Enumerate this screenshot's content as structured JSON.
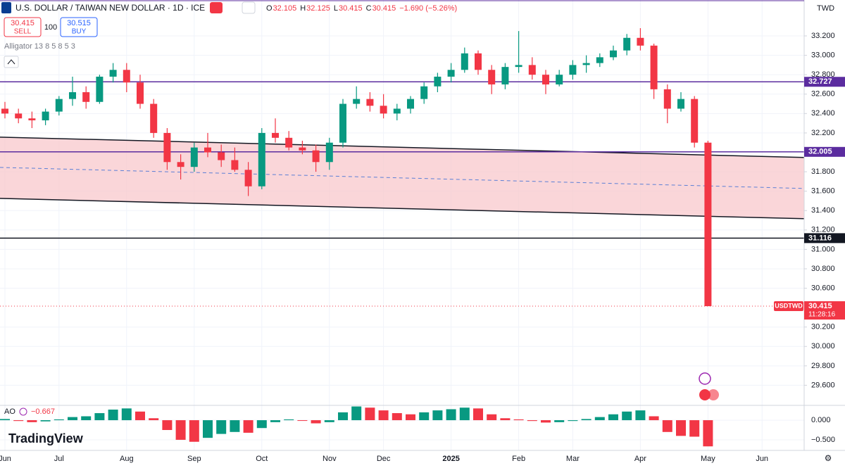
{
  "chart_data": {
    "type": "candlestick",
    "title": "U.S. DOLLAR / TAIWAN NEW DOLLAR · 1D · ICE",
    "legend_ohlc": [
      {
        "key": "O",
        "value": "32.105"
      },
      {
        "key": "H",
        "value": "32.125"
      },
      {
        "key": "L",
        "value": "30.415"
      },
      {
        "key": "C",
        "value": "30.415"
      }
    ],
    "change": "−1.690 (−5.26%)",
    "sell": {
      "price": "30.415",
      "label": "SELL"
    },
    "quantity": "100",
    "buy": {
      "price": "30.515",
      "label": "BUY"
    },
    "indicator_label": "Alligator 13 8 5 8 5 3",
    "currency": "TWD",
    "logo": "TradingView",
    "categories": [
      "Jun",
      null,
      null,
      null,
      "Jul",
      null,
      null,
      null,
      null,
      "Aug",
      null,
      null,
      null,
      null,
      "Sep",
      null,
      null,
      null,
      null,
      "Oct",
      null,
      null,
      null,
      null,
      "Nov",
      null,
      null,
      null,
      "Dec",
      null,
      null,
      null,
      null,
      "2025",
      null,
      null,
      null,
      null,
      "Feb",
      null,
      null,
      null,
      "Mar",
      null,
      null,
      null,
      null,
      "Apr",
      null,
      null,
      null,
      null,
      "May",
      null,
      null,
      null,
      "Jun",
      null,
      null
    ],
    "open": [
      32.45,
      32.4,
      32.35,
      32.33,
      32.42,
      32.55,
      32.62,
      32.52,
      32.78,
      32.85,
      32.72,
      32.5,
      32.2,
      31.9,
      31.85,
      32.05,
      32.0,
      31.92,
      31.82,
      31.65,
      32.2,
      32.15,
      32.05,
      32.02,
      31.9,
      32.1,
      32.5,
      32.55,
      32.48,
      32.4,
      32.45,
      32.55,
      32.68,
      32.78,
      32.85,
      33.02,
      32.85,
      32.7,
      32.88,
      32.9,
      32.8,
      32.7,
      32.8,
      32.9,
      32.92,
      32.98,
      33.05,
      33.18,
      33.1,
      32.65,
      32.45,
      32.55,
      32.1,
      null,
      null,
      null,
      null,
      null,
      null
    ],
    "high": [
      32.52,
      32.45,
      32.42,
      32.45,
      32.58,
      32.78,
      32.68,
      32.8,
      32.92,
      32.92,
      32.8,
      32.55,
      32.25,
      31.98,
      32.1,
      32.2,
      32.08,
      32.05,
      31.9,
      32.25,
      32.35,
      32.22,
      32.12,
      32.08,
      32.15,
      32.55,
      32.68,
      32.62,
      32.6,
      32.5,
      32.58,
      32.72,
      32.82,
      32.92,
      33.08,
      33.05,
      32.9,
      32.92,
      33.25,
      32.98,
      32.85,
      32.85,
      32.95,
      33.0,
      33.02,
      33.1,
      33.22,
      33.28,
      33.12,
      32.7,
      32.62,
      32.58,
      32.12,
      null,
      null,
      null,
      null,
      null,
      null
    ],
    "low": [
      32.35,
      32.3,
      32.25,
      32.28,
      32.38,
      32.48,
      32.45,
      32.5,
      32.72,
      32.62,
      32.45,
      32.15,
      31.82,
      31.72,
      31.8,
      31.95,
      31.85,
      31.8,
      31.55,
      31.62,
      32.1,
      32.02,
      31.98,
      31.8,
      31.82,
      32.05,
      32.45,
      32.42,
      32.35,
      32.33,
      32.4,
      32.5,
      32.62,
      32.72,
      32.82,
      32.8,
      32.6,
      32.65,
      32.82,
      32.75,
      32.6,
      32.68,
      32.75,
      32.82,
      32.88,
      32.95,
      33.0,
      33.05,
      32.55,
      32.3,
      32.42,
      32.05,
      30.415,
      null,
      null,
      null,
      null,
      null,
      null
    ],
    "close": [
      32.4,
      32.35,
      32.33,
      32.42,
      32.55,
      32.62,
      32.52,
      32.78,
      32.85,
      32.72,
      32.5,
      32.2,
      31.9,
      31.85,
      32.05,
      32.0,
      31.92,
      31.82,
      31.65,
      32.2,
      32.15,
      32.05,
      32.02,
      31.9,
      32.1,
      32.5,
      32.55,
      32.48,
      32.4,
      32.45,
      32.55,
      32.68,
      32.78,
      32.85,
      33.02,
      32.85,
      32.7,
      32.88,
      32.9,
      32.8,
      32.7,
      32.8,
      32.9,
      32.92,
      32.98,
      33.05,
      33.18,
      33.1,
      32.65,
      32.45,
      32.55,
      32.1,
      30.415,
      null,
      null,
      null,
      null,
      null,
      null
    ],
    "up_color": "#089981",
    "down_color": "#f23645",
    "ylim": [
      29.4,
      33.57
    ],
    "yticks": [
      {
        "value": 29.6,
        "label": "29.600"
      },
      {
        "value": 29.8,
        "label": "29.800"
      },
      {
        "value": 30,
        "label": "30.000"
      },
      {
        "value": 30.2,
        "label": "30.200"
      },
      {
        "value": 30.6,
        "label": "30.600"
      },
      {
        "value": 30.8,
        "label": "30.800"
      },
      {
        "value": 31,
        "label": "31.000"
      },
      {
        "value": 31.2,
        "label": "31.200"
      },
      {
        "value": 31.4,
        "label": "31.400"
      },
      {
        "value": 31.6,
        "label": "31.600"
      },
      {
        "value": 31.8,
        "label": "31.800"
      },
      {
        "value": 32.2,
        "label": "32.200"
      },
      {
        "value": 32.4,
        "label": "32.400"
      },
      {
        "value": 32.6,
        "label": "32.600"
      },
      {
        "value": 32.8,
        "label": "32.800"
      },
      {
        "value": 33,
        "label": "33.000"
      },
      {
        "value": 33.2,
        "label": "33.200"
      }
    ],
    "hlines": [
      {
        "value": 32.727,
        "color": "#5b2c9f"
      },
      {
        "value": 32.005,
        "color": "#5b2c9f"
      },
      {
        "value": 31.116,
        "color": "#131722"
      }
    ],
    "channel": {
      "upper": [
        32.157,
        31.947
      ],
      "mid": [
        31.845,
        31.628
      ],
      "lower": [
        31.526,
        31.316
      ],
      "fill": "#f8c8cc",
      "line_color": "#131722",
      "mid_color": "#5b7fd6"
    },
    "last": {
      "symbol": "USDTWD",
      "value": 30.415,
      "countdown": "11:28:16",
      "color": "#f23645"
    },
    "ao": {
      "name": "AO",
      "value_label": "−0.667",
      "values": [
        0.03,
        -0.02,
        -0.05,
        -0.03,
        0.02,
        0.08,
        0.1,
        0.18,
        0.27,
        0.3,
        0.22,
        0.05,
        -0.25,
        -0.5,
        -0.55,
        -0.45,
        -0.35,
        -0.3,
        -0.32,
        -0.2,
        -0.05,
        0.02,
        0.0,
        -0.08,
        -0.05,
        0.2,
        0.35,
        0.32,
        0.25,
        0.18,
        0.15,
        0.2,
        0.25,
        0.28,
        0.32,
        0.3,
        0.15,
        0.05,
        0.02,
        -0.02,
        -0.06,
        -0.05,
        -0.02,
        0.03,
        0.08,
        0.15,
        0.22,
        0.25,
        0.1,
        -0.3,
        -0.4,
        -0.42,
        -0.667,
        null,
        null,
        null,
        null,
        null,
        null
      ],
      "ylim": [
        -0.77,
        0.36
      ],
      "yticks": [
        {
          "value": 0,
          "label": "0.000"
        },
        {
          "value": -0.5,
          "label": "−0.500"
        }
      ],
      "up_color": "#089981",
      "down_color": "#f23645"
    }
  }
}
